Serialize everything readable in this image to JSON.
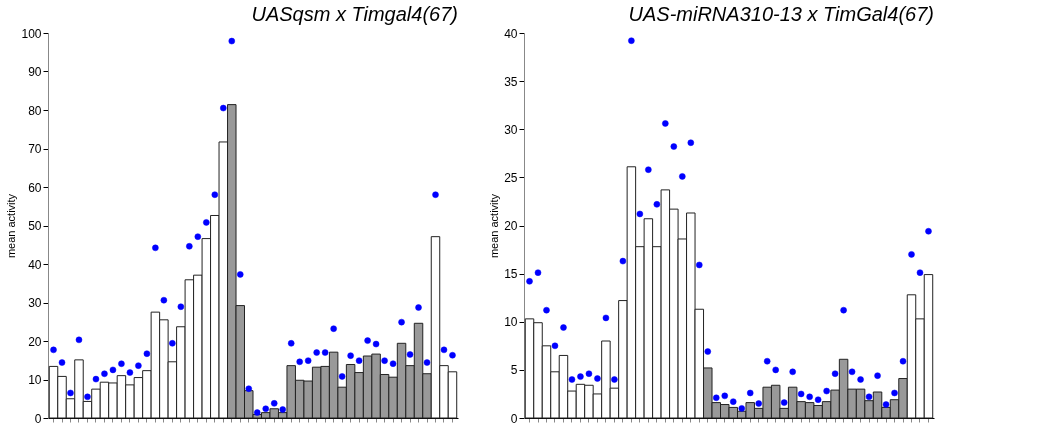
{
  "chart_data": [
    {
      "type": "bar",
      "title": "UASqsm x Timgal4(67)",
      "ylabel": "mean activity",
      "ylim": [
        0,
        100
      ],
      "yticks": [
        0,
        10,
        20,
        30,
        40,
        50,
        60,
        70,
        80,
        90,
        100
      ],
      "grid": false,
      "tick_labels": "y",
      "marker": "circle",
      "categories": [
        null,
        null,
        null,
        null,
        null,
        null,
        null,
        null,
        null,
        null,
        null,
        null,
        null,
        null,
        null,
        null,
        null,
        null,
        null,
        null,
        null,
        null,
        null,
        null,
        null,
        null,
        null,
        null,
        null,
        null,
        null,
        null,
        null,
        null,
        null,
        null,
        null,
        null,
        null,
        null,
        null,
        null,
        null,
        null,
        null,
        null,
        null,
        null
      ],
      "series": [
        {
          "type": "bar",
          "colors": [
            "#ffffff",
            "#ffffff",
            "#ffffff",
            "#ffffff",
            "#ffffff",
            "#ffffff",
            "#ffffff",
            "#ffffff",
            "#ffffff",
            "#ffffff",
            "#ffffff",
            "#ffffff",
            "#ffffff",
            "#ffffff",
            "#ffffff",
            "#ffffff",
            "#ffffff",
            "#ffffff",
            "#ffffff",
            "#ffffff",
            "#ffffff",
            "#999999",
            "#999999",
            "#999999",
            "#999999",
            "#999999",
            "#999999",
            "#999999",
            "#999999",
            "#999999",
            "#999999",
            "#999999",
            "#999999",
            "#999999",
            "#999999",
            "#999999",
            "#999999",
            "#999999",
            "#999999",
            "#999999",
            "#999999",
            "#999999",
            "#999999",
            "#999999",
            "#999999",
            "#ffffff",
            "#ffffff",
            "#ffffff"
          ],
          "values": [
            13.4,
            10.8,
            5.0,
            15.1,
            4.3,
            7.5,
            9.3,
            9.1,
            11.0,
            8.6,
            10.5,
            12.3,
            27.5,
            25.5,
            14.6,
            23.7,
            35.9,
            37.1,
            46.6,
            52.6,
            71.7,
            81.4,
            29.2,
            7.1,
            0.9,
            1.4,
            2.4,
            1.4,
            13.6,
            9.8,
            9.6,
            13.2,
            13.4,
            17.1,
            8.0,
            13.9,
            11.8,
            16.1,
            16.6,
            11.3,
            10.6,
            19.4,
            13.6,
            24.6,
            11.5,
            47.1,
            13.6,
            12.0
          ]
        },
        {
          "type": "scatter",
          "color": "#0000ff",
          "values": [
            17.7,
            14.4,
            6.5,
            20.3,
            5.5,
            10.1,
            11.5,
            12.5,
            14.1,
            11.8,
            13.6,
            16.7,
            44.2,
            30.6,
            19.4,
            28.9,
            44.6,
            47.1,
            50.8,
            58.0,
            80.5,
            97.9,
            37.3,
            7.6,
            1.4,
            2.4,
            3.8,
            2.2,
            19.4,
            14.6,
            14.9,
            17.0,
            17.0,
            23.2,
            10.8,
            16.2,
            14.9,
            20.1,
            19.2,
            14.9,
            14.1,
            24.9,
            16.5,
            28.7,
            14.4,
            58.0,
            17.7,
            16.3
          ]
        }
      ]
    },
    {
      "type": "bar",
      "title": "UAS-miRNA310-13 x TimGal4(67)",
      "ylabel": "mean activity",
      "ylim": [
        0,
        40
      ],
      "yticks": [
        0,
        5,
        10,
        15,
        20,
        25,
        30,
        35,
        40
      ],
      "grid": false,
      "tick_labels": "y",
      "marker": "circle",
      "categories": [
        null,
        null,
        null,
        null,
        null,
        null,
        null,
        null,
        null,
        null,
        null,
        null,
        null,
        null,
        null,
        null,
        null,
        null,
        null,
        null,
        null,
        null,
        null,
        null,
        null,
        null,
        null,
        null,
        null,
        null,
        null,
        null,
        null,
        null,
        null,
        null,
        null,
        null,
        null,
        null,
        null,
        null,
        null,
        null,
        null,
        null,
        null,
        null
      ],
      "series": [
        {
          "type": "bar",
          "colors": [
            "#ffffff",
            "#ffffff",
            "#ffffff",
            "#ffffff",
            "#ffffff",
            "#ffffff",
            "#ffffff",
            "#ffffff",
            "#ffffff",
            "#ffffff",
            "#ffffff",
            "#ffffff",
            "#ffffff",
            "#ffffff",
            "#ffffff",
            "#ffffff",
            "#ffffff",
            "#ffffff",
            "#ffffff",
            "#ffffff",
            "#ffffff",
            "#999999",
            "#999999",
            "#999999",
            "#999999",
            "#999999",
            "#999999",
            "#999999",
            "#999999",
            "#999999",
            "#999999",
            "#999999",
            "#999999",
            "#999999",
            "#999999",
            "#999999",
            "#999999",
            "#999999",
            "#999999",
            "#999999",
            "#999999",
            "#999999",
            "#999999",
            "#999999",
            "#999999",
            "#ffffff",
            "#ffffff",
            "#ffffff"
          ],
          "values": [
            10.3,
            9.9,
            7.5,
            4.8,
            6.5,
            2.8,
            3.5,
            3.4,
            2.5,
            8.0,
            3.1,
            12.2,
            26.1,
            17.8,
            20.7,
            17.8,
            23.7,
            21.7,
            18.6,
            21.3,
            11.3,
            5.2,
            1.6,
            1.4,
            1.1,
            0.7,
            1.6,
            1.0,
            3.2,
            3.4,
            1.0,
            3.2,
            1.7,
            1.6,
            1.3,
            1.7,
            2.9,
            6.1,
            3.0,
            3.0,
            1.8,
            2.7,
            1.1,
            1.9,
            4.1,
            12.8,
            10.3,
            14.9
          ]
        },
        {
          "type": "scatter",
          "color": "#0000ff",
          "values": [
            14.2,
            15.1,
            11.2,
            7.5,
            9.4,
            4.0,
            4.3,
            4.6,
            4.1,
            10.4,
            4.0,
            16.3,
            39.2,
            21.2,
            25.8,
            22.2,
            30.6,
            28.2,
            25.1,
            28.6,
            15.9,
            6.9,
            2.1,
            2.3,
            1.7,
            1.0,
            2.6,
            1.5,
            5.9,
            5.0,
            1.6,
            4.8,
            2.5,
            2.2,
            1.9,
            2.8,
            4.6,
            11.2,
            4.8,
            4.0,
            2.2,
            4.4,
            1.4,
            2.6,
            5.9,
            17.0,
            15.1,
            19.4
          ]
        }
      ]
    }
  ]
}
